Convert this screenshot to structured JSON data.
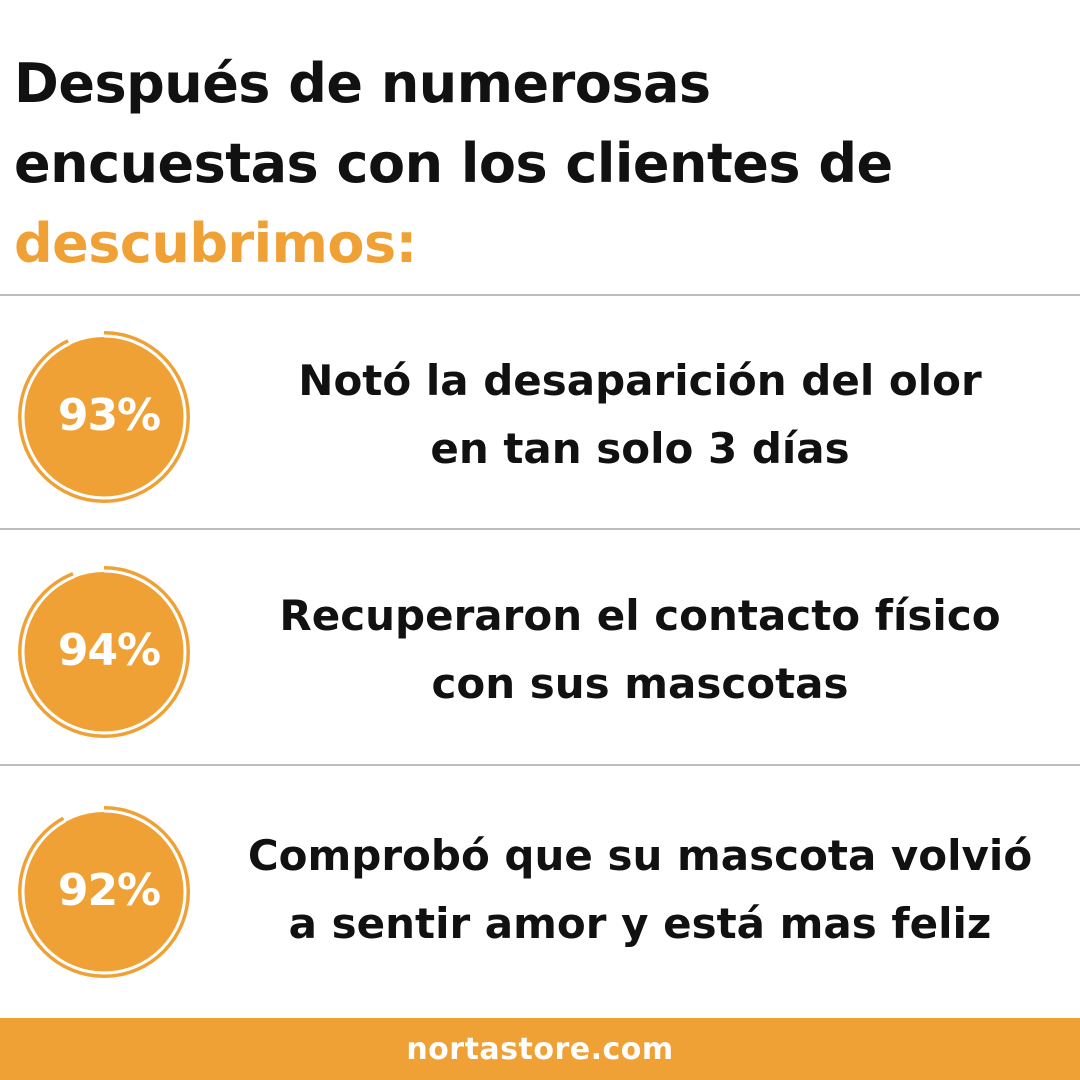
{
  "headline": {
    "line1": "Después de numerosas",
    "line2": "encuestas con los clientes de",
    "line3": "descubrimos:"
  },
  "stats": [
    {
      "percent": 93,
      "badge_label": "93%",
      "line1": "Notó la desaparición del olor",
      "line2": "en tan solo 3 días"
    },
    {
      "percent": 94,
      "badge_label": "94%",
      "line1": "Recuperaron el contacto físico",
      "line2": "con sus mascotas"
    },
    {
      "percent": 92,
      "badge_label": "92%",
      "line1": "Comprobó que su mascota volvió",
      "line2": "a sentir amor y está mas feliz"
    }
  ],
  "footer": {
    "website": "nortastore.com"
  },
  "colors": {
    "accent": "#f0a136",
    "text": "#111111",
    "divider": "#bdbdbd",
    "badge_text": "#ffffff"
  }
}
